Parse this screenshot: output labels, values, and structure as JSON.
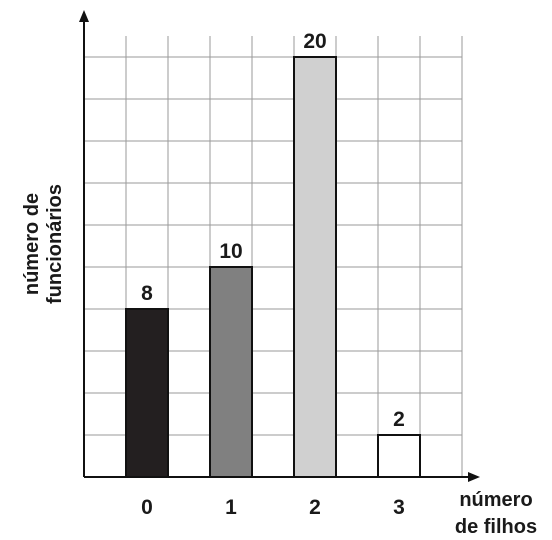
{
  "chart_data": {
    "type": "bar",
    "title": "",
    "xlabel_lines": [
      "número",
      "de filhos"
    ],
    "ylabel_lines": [
      "número de",
      "funcionários"
    ],
    "categories": [
      "0",
      "1",
      "2",
      "3"
    ],
    "values": [
      8,
      10,
      20,
      2
    ],
    "data_labels": [
      "8",
      "10",
      "20",
      "2"
    ],
    "bar_colors": [
      "#231f20",
      "#808080",
      "#d0d0d0",
      "#ffffff"
    ],
    "ylim": [
      0,
      22
    ],
    "grid": true,
    "legend": "none"
  }
}
